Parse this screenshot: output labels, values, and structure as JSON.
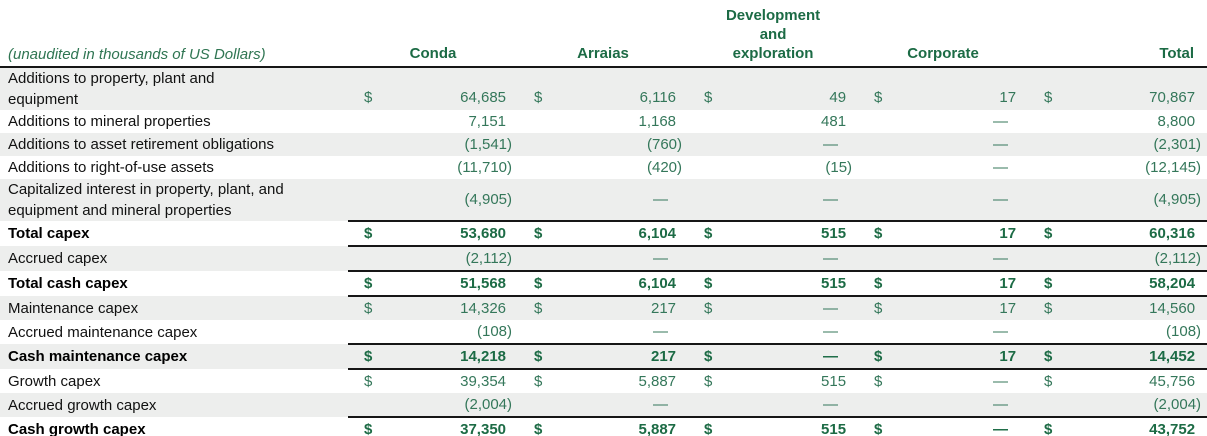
{
  "currency_symbol": "$",
  "table": {
    "note": "(unaudited in thousands of US Dollars)",
    "columns": [
      "Conda",
      "Arraias",
      "Development\nand\nexploration",
      "Corporate",
      "Total"
    ],
    "rows": [
      {
        "label": "Additions to property, plant and\nequipment",
        "bold": false,
        "dollar": true,
        "line_top": false,
        "values": [
          "64,685",
          "6,116",
          "49",
          "17",
          "70,867"
        ]
      },
      {
        "label": "Additions to mineral properties",
        "bold": false,
        "dollar": false,
        "line_top": false,
        "values": [
          "7,151",
          "1,168",
          "481",
          "—",
          "8,800"
        ]
      },
      {
        "label": "Additions to asset retirement obligations",
        "bold": false,
        "dollar": false,
        "line_top": false,
        "values": [
          "(1,541)",
          "(760)",
          "—",
          "—",
          "(2,301)"
        ]
      },
      {
        "label": "Additions to right-of-use assets",
        "bold": false,
        "dollar": false,
        "line_top": false,
        "values": [
          "(11,710)",
          "(420)",
          "(15)",
          "—",
          "(12,145)"
        ]
      },
      {
        "label": "Capitalized interest in property, plant, and\nequipment and mineral properties",
        "bold": false,
        "dollar": false,
        "line_top": false,
        "values": [
          "(4,905)",
          "—",
          "—",
          "—",
          "(4,905)"
        ]
      },
      {
        "label": "Total capex",
        "bold": true,
        "dollar": true,
        "line_top": true,
        "values": [
          "53,680",
          "6,104",
          "515",
          "17",
          "60,316"
        ]
      },
      {
        "label": "Accrued capex",
        "bold": false,
        "dollar": false,
        "line_top": true,
        "values": [
          "(2,112)",
          "—",
          "—",
          "—",
          "(2,112)"
        ]
      },
      {
        "label": "Total cash capex",
        "bold": true,
        "dollar": true,
        "line_top": true,
        "values": [
          "51,568",
          "6,104",
          "515",
          "17",
          "58,204"
        ]
      },
      {
        "label": "Maintenance capex",
        "bold": false,
        "dollar": true,
        "line_top": true,
        "values": [
          "14,326",
          "217",
          "—",
          "17",
          "14,560"
        ]
      },
      {
        "label": "Accrued maintenance capex",
        "bold": false,
        "dollar": false,
        "line_top": false,
        "values": [
          "(108)",
          "—",
          "—",
          "—",
          "(108)"
        ]
      },
      {
        "label": "Cash maintenance capex",
        "bold": true,
        "dollar": true,
        "line_top": true,
        "values": [
          "14,218",
          "217",
          "—",
          "17",
          "14,452"
        ]
      },
      {
        "label": "Growth capex",
        "bold": false,
        "dollar": true,
        "line_top": true,
        "values": [
          "39,354",
          "5,887",
          "515",
          "—",
          "45,756"
        ]
      },
      {
        "label": "Accrued growth capex",
        "bold": false,
        "dollar": false,
        "line_top": false,
        "values": [
          "(2,004)",
          "—",
          "—",
          "—",
          "(2,004)"
        ]
      },
      {
        "label": "Cash growth capex",
        "bold": true,
        "dollar": true,
        "line_top": true,
        "values": [
          "37,350",
          "5,887",
          "515",
          "—",
          "43,752"
        ]
      }
    ]
  }
}
